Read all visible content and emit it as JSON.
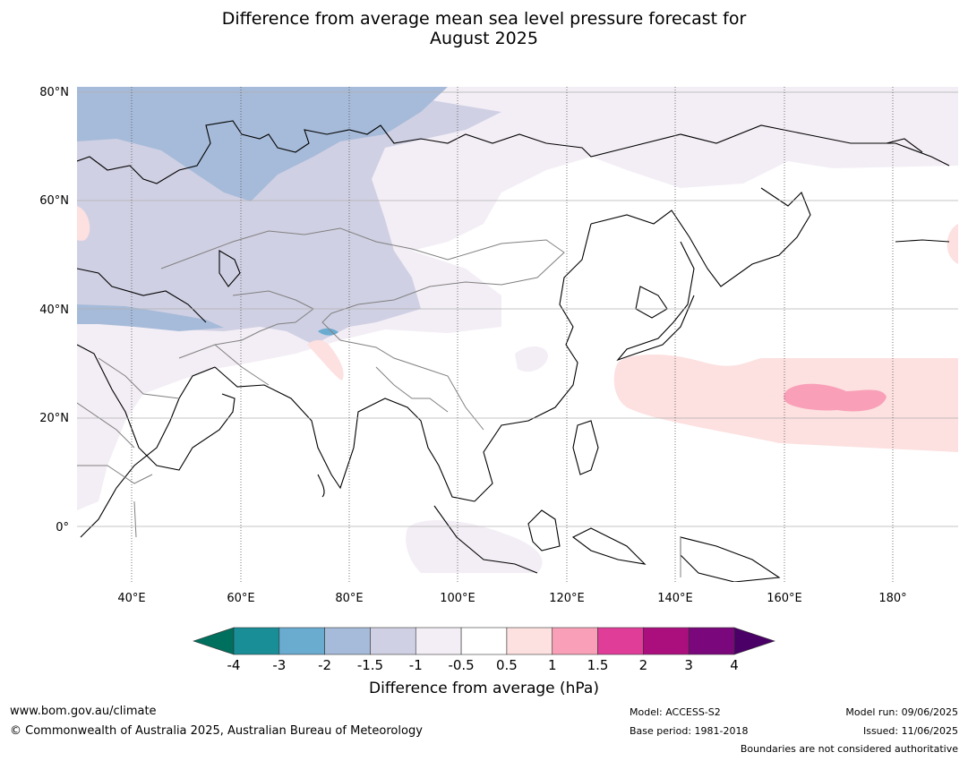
{
  "title": {
    "line1": "Difference from average mean sea level pressure forecast for",
    "line2": "August 2025"
  },
  "map": {
    "lat_labels": [
      "80°N",
      "60°N",
      "40°N",
      "20°N",
      "0°"
    ],
    "lon_labels": [
      "40°E",
      "60°E",
      "80°E",
      "100°E",
      "120°E",
      "140°E",
      "160°E",
      "180°"
    ],
    "extent": {
      "lon_min": 30,
      "lon_max": 192,
      "lat_min": -10,
      "lat_max": 81
    }
  },
  "colorbar": {
    "ticks": [
      "-4",
      "-3",
      "-2",
      "-1.5",
      "-1",
      "-0.5",
      "0.5",
      "1",
      "1.5",
      "2",
      "3",
      "4"
    ],
    "colors": [
      "#1a8e96",
      "#6aabd0",
      "#a6bbd9",
      "#d0d0e4",
      "#f3eef5",
      "#ffffff",
      "#fde0e0",
      "#f9a0b8",
      "#df3d98",
      "#ab0f7e",
      "#7b077c"
    ],
    "under_color": "#00705e",
    "over_color": "#4a0066",
    "label": "Difference from average (hPa)"
  },
  "footer": {
    "website": "www.bom.gov.au/climate",
    "copyright": "© Commonwealth of Australia 2025, Australian Bureau of Meteorology",
    "model": "Model: ACCESS-S2",
    "base_period": "Base period: 1981-2018",
    "model_run": "Model run: 09/06/2025",
    "issued": "Issued: 11/06/2025",
    "disclaimer": "Boundaries are not considered authoritative"
  }
}
